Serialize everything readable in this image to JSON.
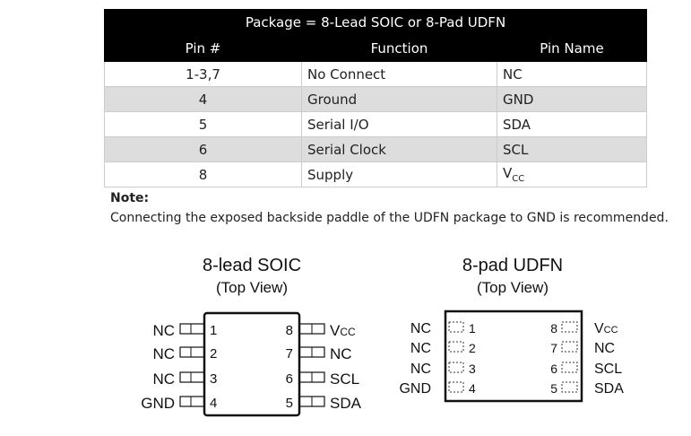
{
  "table": {
    "title": "Package = 8-Lead SOIC or 8-Pad UDFN",
    "headers": [
      "Pin #",
      "Function",
      "Pin Name"
    ],
    "rows": [
      {
        "pin": "1-3,7",
        "function": "No Connect",
        "name": "NC",
        "sub": ""
      },
      {
        "pin": "4",
        "function": "Ground",
        "name": "GND",
        "sub": ""
      },
      {
        "pin": "5",
        "function": "Serial I/O",
        "name": "SDA",
        "sub": ""
      },
      {
        "pin": "6",
        "function": "Serial Clock",
        "name": "SCL",
        "sub": ""
      },
      {
        "pin": "8",
        "function": "Supply",
        "name": "V",
        "sub": "CC"
      }
    ]
  },
  "note": {
    "heading": "Note:",
    "text": "Connecting the exposed backside paddle of the UDFN package to GND is recommended."
  },
  "soic": {
    "title": "8-lead SOIC",
    "subtitle": "(Top View)",
    "left": [
      {
        "n": "1",
        "l": "NC"
      },
      {
        "n": "2",
        "l": "NC"
      },
      {
        "n": "3",
        "l": "NC"
      },
      {
        "n": "4",
        "l": "GND"
      }
    ],
    "right": [
      {
        "n": "8",
        "l": "V",
        "s": "CC"
      },
      {
        "n": "7",
        "l": "NC",
        "s": ""
      },
      {
        "n": "6",
        "l": "SCL",
        "s": ""
      },
      {
        "n": "5",
        "l": "SDA",
        "s": ""
      }
    ]
  },
  "udfn": {
    "title": "8-pad UDFN",
    "subtitle": "(Top View)",
    "left": [
      {
        "n": "1",
        "l": "NC"
      },
      {
        "n": "2",
        "l": "NC"
      },
      {
        "n": "3",
        "l": "NC"
      },
      {
        "n": "4",
        "l": "GND"
      }
    ],
    "right": [
      {
        "n": "8",
        "l": "V",
        "s": "CC"
      },
      {
        "n": "7",
        "l": "NC",
        "s": ""
      },
      {
        "n": "6",
        "l": "SCL",
        "s": ""
      },
      {
        "n": "5",
        "l": "SDA",
        "s": ""
      }
    ]
  }
}
